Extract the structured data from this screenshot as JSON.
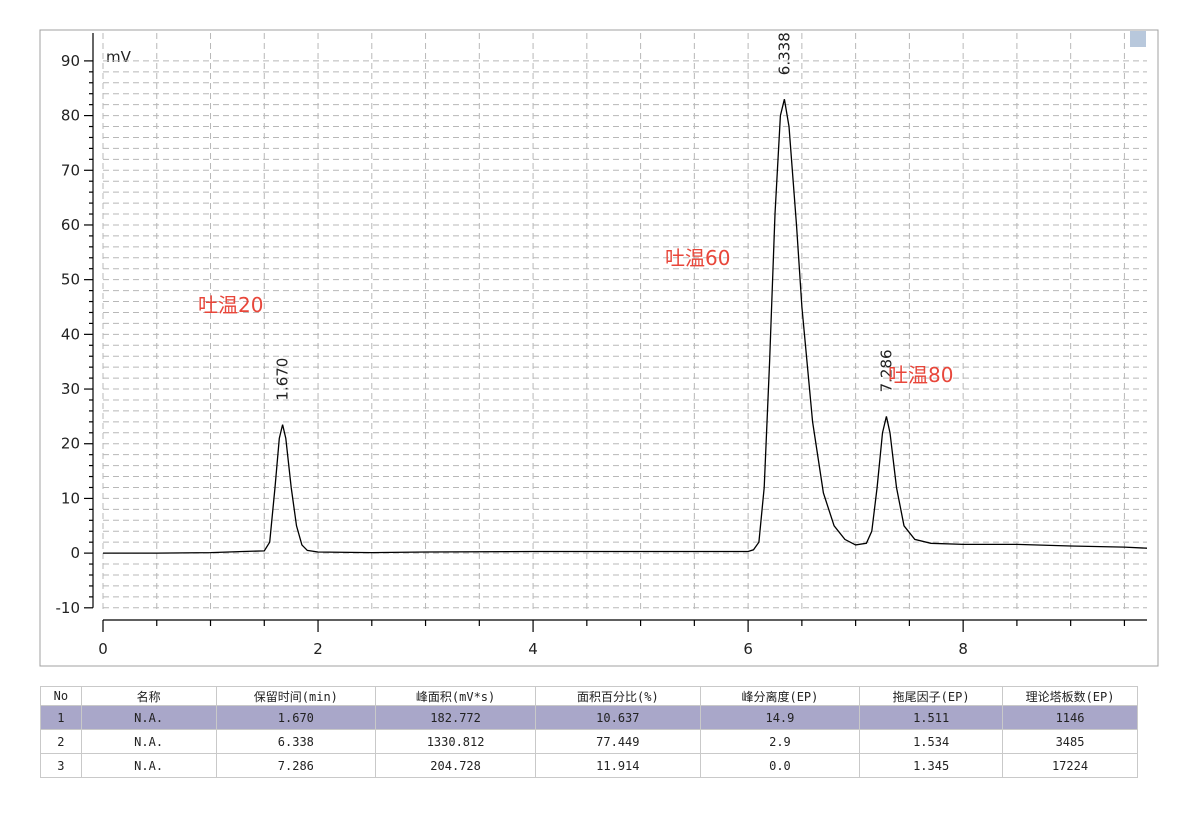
{
  "chart_data": {
    "type": "line",
    "y_label": "mV",
    "xlim": [
      0,
      9.71
    ],
    "ylim": [
      -10.4,
      95.1
    ],
    "xticks": [
      0,
      2,
      4,
      6,
      8
    ],
    "yticks": [
      -10,
      0,
      10,
      20,
      30,
      40,
      50,
      60,
      70,
      80,
      90
    ],
    "grid": true,
    "series": [
      {
        "color": "#000000",
        "x": [
          0,
          0.5,
          1.0,
          1.3,
          1.5,
          1.55,
          1.6,
          1.64,
          1.67,
          1.7,
          1.75,
          1.8,
          1.85,
          1.9,
          2.0,
          2.5,
          3,
          4,
          5,
          6,
          6.05,
          6.1,
          6.15,
          6.2,
          6.25,
          6.3,
          6.338,
          6.38,
          6.45,
          6.5,
          6.6,
          6.7,
          6.8,
          6.9,
          7.0,
          7.1,
          7.15,
          7.2,
          7.25,
          7.286,
          7.32,
          7.38,
          7.45,
          7.55,
          7.7,
          8.0,
          8.5,
          9.0,
          9.5,
          9.71
        ],
        "values": [
          0,
          0,
          0.1,
          0.3,
          0.4,
          2,
          12,
          21,
          23.5,
          21,
          12,
          5,
          1.5,
          0.5,
          0.2,
          0.1,
          0.2,
          0.3,
          0.3,
          0.3,
          0.6,
          2,
          12,
          35,
          62,
          80,
          83,
          78,
          60,
          45,
          24,
          11,
          5,
          2.5,
          1.5,
          1.8,
          4,
          12,
          22,
          25,
          22,
          12,
          5,
          2.5,
          1.8,
          1.6,
          1.6,
          1.3,
          1.1,
          0.9
        ]
      }
    ],
    "peak_labels": [
      {
        "value": 1.67,
        "label": "1.670"
      },
      {
        "value": 6.338,
        "label": "6.338"
      },
      {
        "value": 7.286,
        "label": "7.286"
      }
    ],
    "annotations": [
      "吐温20",
      "吐温60",
      "吐温80"
    ]
  },
  "table": {
    "header": [
      "No",
      "名称",
      "保留时间(min)",
      "峰面积(mV*s)",
      "面积百分比(%)",
      "峰分离度(EP)",
      "拖尾因子(EP)",
      "理论塔板数(EP)"
    ],
    "rows": [
      [
        "1",
        "N.A.",
        "1.670",
        "182.772",
        "10.637",
        "14.9",
        "1.511",
        "1146"
      ],
      [
        "2",
        "N.A.",
        "6.338",
        "1330.812",
        "77.449",
        "2.9",
        "1.534",
        "3485"
      ],
      [
        "3",
        "N.A.",
        "7.286",
        "204.728",
        "11.914",
        "0.0",
        "1.345",
        "17224"
      ]
    ]
  }
}
